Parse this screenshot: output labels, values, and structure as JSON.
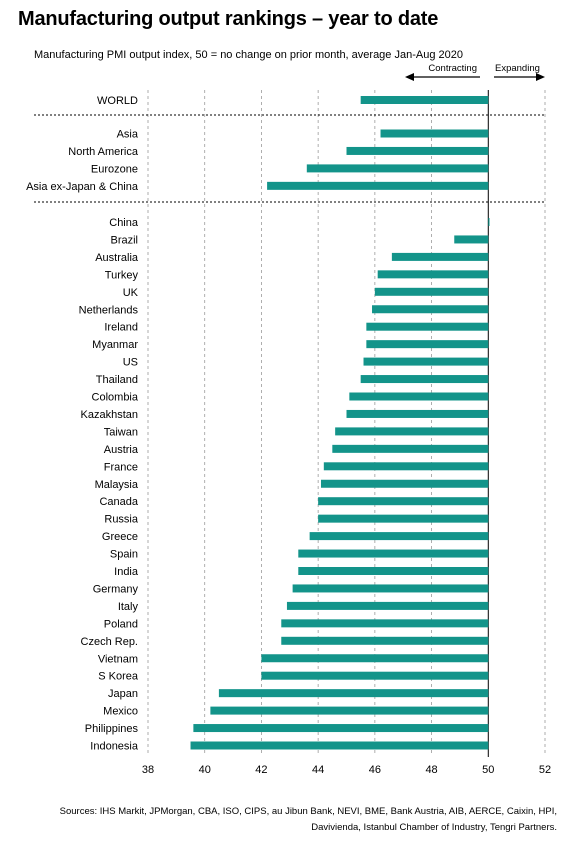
{
  "title": "Manufacturing output rankings – year to date",
  "subtitle": "Manufacturing PMI output index, 50 = no change on prior month, average Jan-Aug 2020",
  "direction_labels": {
    "left": "Contracting",
    "right": "Expanding"
  },
  "sources": "Sources: IHS Markit, JPMorgan, CBA, ISO, CIPS, au Jibun Bank, NEVI, BME, Bank Austria, AIB, AERCE, Caixin, HPI, Davivienda, Istanbul Chamber of Industry, Tengri Partners.",
  "colors": {
    "bar": "#13948a",
    "grid": "#9a9a9a",
    "axis": "#000000"
  },
  "chart_data": {
    "type": "bar",
    "orientation": "horizontal",
    "baseline": 50,
    "xlim": [
      38,
      52
    ],
    "xticks": [
      38,
      40,
      42,
      44,
      46,
      48,
      50,
      52
    ],
    "grid": "vertical dashed",
    "groups": [
      {
        "categories": [
          "WORLD"
        ],
        "values": [
          45.5
        ]
      },
      {
        "categories": [
          "Asia",
          "North America",
          "Eurozone",
          "Asia ex-Japan & China"
        ],
        "values": [
          46.2,
          45.0,
          43.6,
          42.2
        ]
      },
      {
        "categories": [
          "China",
          "Brazil",
          "Australia",
          "Turkey",
          "UK",
          "Netherlands",
          "Ireland",
          "Myanmar",
          "US",
          "Thailand",
          "Colombia",
          "Kazakhstan",
          "Taiwan",
          "Austria",
          "France",
          "Malaysia",
          "Canada",
          "Russia",
          "Greece",
          "Spain",
          "India",
          "Germany",
          "Italy",
          "Poland",
          "Czech Rep.",
          "Vietnam",
          "S Korea",
          "Japan",
          "Mexico",
          "Philippines",
          "Indonesia"
        ],
        "values": [
          50.0,
          48.8,
          46.6,
          46.1,
          46.0,
          45.9,
          45.7,
          45.7,
          45.6,
          45.5,
          45.1,
          45.0,
          44.6,
          44.5,
          44.2,
          44.1,
          44.0,
          44.0,
          43.7,
          43.3,
          43.3,
          43.1,
          42.9,
          42.7,
          42.7,
          42.0,
          42.0,
          40.5,
          40.2,
          39.6,
          39.5
        ]
      }
    ]
  }
}
